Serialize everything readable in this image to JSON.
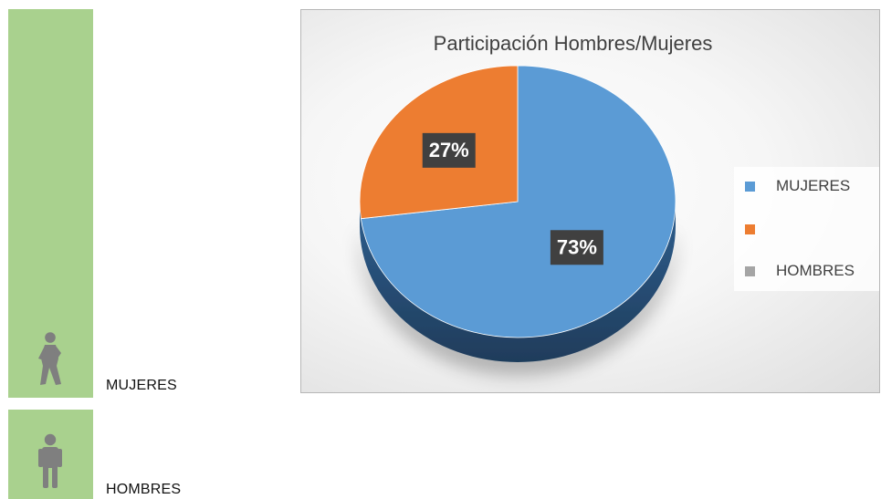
{
  "sidebar": {
    "women_label": "MUJERES",
    "men_label": "HOMBRES",
    "women_icon": "woman-figure-icon",
    "men_icon": "man-figure-icon"
  },
  "colors": {
    "sidebar_green": "#a9d18e",
    "icon_gray": "#7f7f7f",
    "mujeres": "#5b9bd5",
    "orange": "#ed7d31",
    "hombres": "#a5a5a5",
    "data_label_bg": "#404040"
  },
  "chart_data": {
    "type": "pie",
    "title": "Participación Hombres/Mujeres",
    "categories": [
      "MUJERES",
      "",
      "HOMBRES"
    ],
    "values": [
      73,
      27,
      0
    ],
    "data_labels": [
      "73%",
      "27%",
      ""
    ],
    "colors": [
      "#5b9bd5",
      "#ed7d31",
      "#a5a5a5"
    ],
    "legend_position": "right",
    "style": "3d"
  }
}
